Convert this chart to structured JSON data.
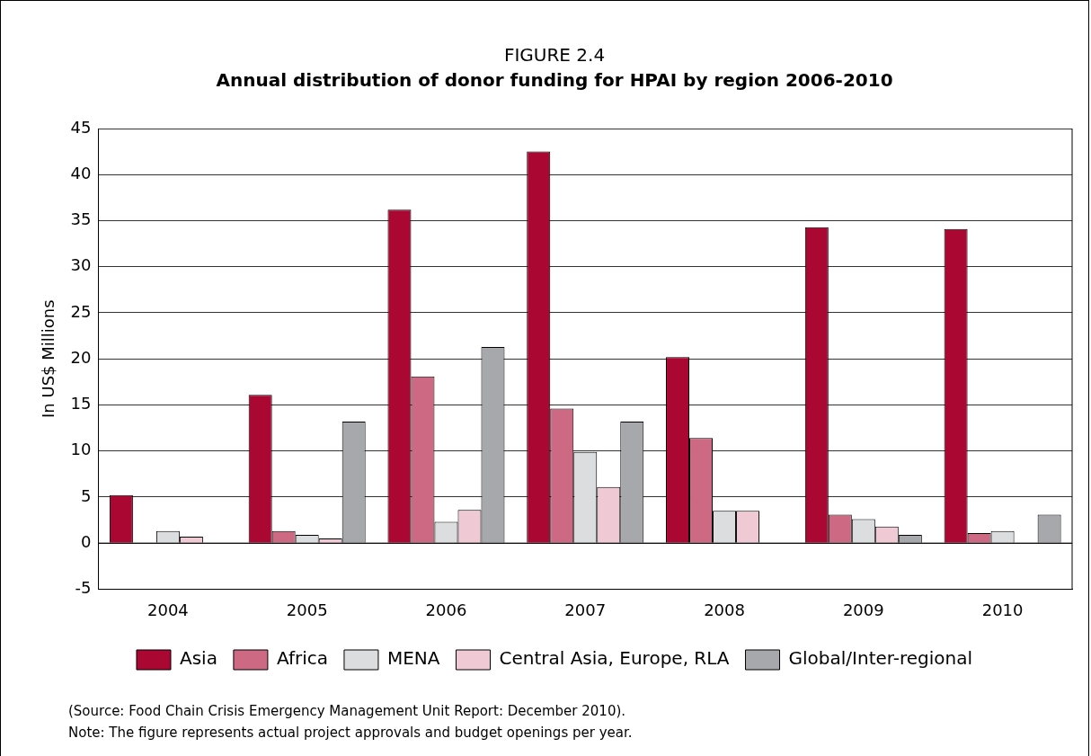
{
  "chart_data": {
    "type": "bar",
    "title": "FIGURE 2.4",
    "subtitle": "Annual distribution of donor funding for HPAI by region 2006-2010",
    "ylabel": "In US$ Millions",
    "categories": [
      "2004",
      "2005",
      "2006",
      "2007",
      "2008",
      "2009",
      "2010"
    ],
    "series": [
      {
        "name": "Asia",
        "color": "#ab0733",
        "values": [
          5.2,
          16.1,
          36.2,
          42.5,
          20.2,
          34.3,
          34.1
        ]
      },
      {
        "name": "Africa",
        "color": "#cd6983",
        "values": [
          0,
          1.3,
          18.1,
          14.6,
          11.4,
          3.1,
          1.1
        ]
      },
      {
        "name": "MENA",
        "color": "#dcdddf",
        "values": [
          1.3,
          0.9,
          2.3,
          9.9,
          3.5,
          2.6,
          1.3
        ]
      },
      {
        "name": "Central Asia, Europe, RLA",
        "color": "#efcad5",
        "values": [
          0.7,
          0.5,
          3.6,
          6.1,
          3.5,
          1.8,
          0
        ]
      },
      {
        "name": "Global/Inter-regional",
        "color": "#a7a8ac",
        "values": [
          0,
          13.2,
          21.3,
          13.2,
          0,
          0.9,
          3.1
        ]
      }
    ],
    "ylim": [
      -5,
      45
    ],
    "yticks": [
      -5,
      0,
      5,
      10,
      15,
      20,
      25,
      30,
      35,
      40,
      45
    ],
    "grid": "y",
    "legend": "bottom",
    "annotations": [
      "(Source: Food Chain Crisis Emergency Management Unit Report: December 2010).",
      "Note: The figure represents actual project approvals and budget openings per year."
    ]
  }
}
